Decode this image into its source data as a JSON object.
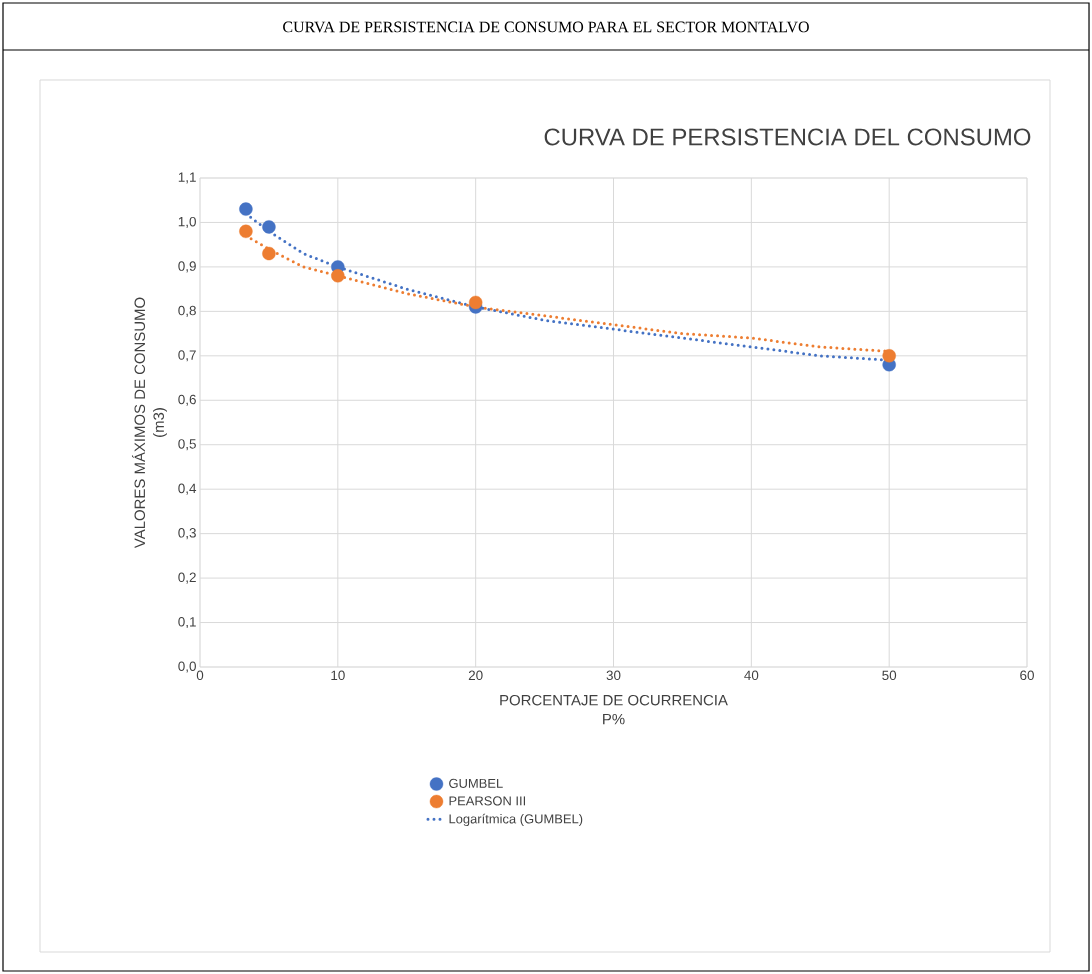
{
  "chart_data": {
    "type": "scatter",
    "title": "CURVA DE PERSISTENCIA DE CONSUMO PARA EL SECTOR MONTALVO",
    "subtitle": "CURVA DE PERSISTENCIA DEL CONSUMO",
    "xlabel": "PORCENTAJE DE OCURRENCIA P%",
    "ylabel": "VALORES MÁXIMOS DE CONSUMO (m3)",
    "xlim": [
      0,
      60
    ],
    "xticks": [
      0,
      10,
      20,
      30,
      40,
      50,
      60
    ],
    "ylim": [
      0,
      1.1
    ],
    "yticks": [
      {
        "value": 0,
        "label": "0,0"
      },
      {
        "value": 0.1,
        "label": "0,1"
      },
      {
        "value": 0.2,
        "label": "0,2"
      },
      {
        "value": 0.3,
        "label": "0,3"
      },
      {
        "value": 0.4,
        "label": "0,4"
      },
      {
        "value": 0.5,
        "label": "0,5"
      },
      {
        "value": 0.6,
        "label": "0,6"
      },
      {
        "value": 0.7,
        "label": "0,7"
      },
      {
        "value": 0.8,
        "label": "0,8"
      },
      {
        "value": 0.9,
        "label": "0,9"
      },
      {
        "value": 1.0,
        "label": "1,0"
      },
      {
        "value": 1.1,
        "label": "1,1"
      }
    ],
    "grid": true,
    "legend": "bottom",
    "marker": "circle",
    "series": [
      {
        "name": "GUMBEL",
        "color": "#4472c4",
        "x": [
          3.33,
          5,
          10,
          20,
          50
        ],
        "values": [
          1.03,
          0.99,
          0.9,
          0.81,
          0.68
        ]
      },
      {
        "name": "PEARSON III",
        "color": "#ed7d31",
        "x": [
          3.33,
          5,
          10,
          20,
          50
        ],
        "values": [
          0.98,
          0.93,
          0.88,
          0.82,
          0.7
        ]
      },
      {
        "type": "line",
        "name": "Logarítmica (GUMBEL)",
        "color": "#4472c4",
        "line_style": "dotted",
        "marker": "none",
        "x": [
          3.33,
          5,
          7.5,
          10,
          15,
          20,
          25,
          30,
          35,
          40,
          45,
          50
        ],
        "values": [
          1.02,
          0.98,
          0.93,
          0.9,
          0.85,
          0.81,
          0.78,
          0.76,
          0.74,
          0.72,
          0.7,
          0.69
        ]
      },
      {
        "type": "line",
        "color": "#ed7d31",
        "line_style": "dotted",
        "marker": "none",
        "x": [
          3.33,
          5,
          7.5,
          10,
          15,
          20,
          25,
          30,
          35,
          40,
          45,
          50
        ],
        "values": [
          0.97,
          0.94,
          0.9,
          0.88,
          0.84,
          0.81,
          0.79,
          0.77,
          0.75,
          0.74,
          0.72,
          0.71
        ]
      }
    ]
  }
}
